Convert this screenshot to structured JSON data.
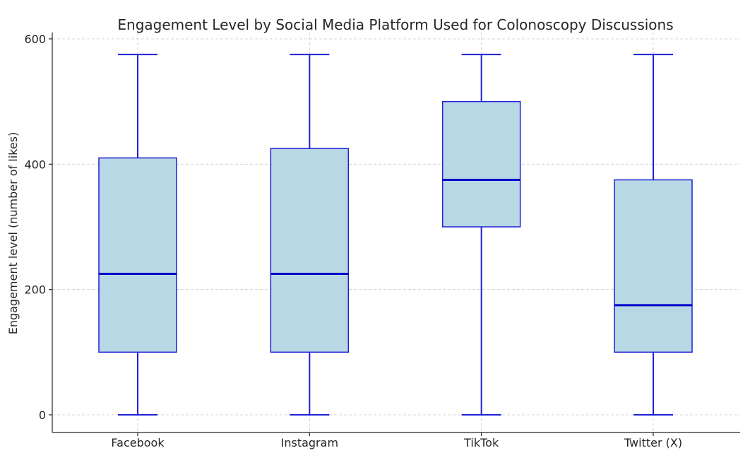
{
  "chart_data": {
    "type": "box",
    "title": "Engagement Level by Social Media Platform Used for Colonoscopy Discussions",
    "xlabel": "",
    "ylabel": "Engagement level (number of likes)",
    "ylim": [
      -30,
      600
    ],
    "yticks": [
      0,
      200,
      400,
      600
    ],
    "grid": true,
    "categories": [
      "Facebook",
      "Instagram",
      "TikTok",
      "Twitter (X)"
    ],
    "boxes": [
      {
        "category": "Facebook",
        "whisker_low": 0,
        "q1": 100,
        "median": 225,
        "q3": 410,
        "whisker_high": 575
      },
      {
        "category": "Instagram",
        "whisker_low": 0,
        "q1": 100,
        "median": 225,
        "q3": 425,
        "whisker_high": 575
      },
      {
        "category": "TikTok",
        "whisker_low": 0,
        "q1": 300,
        "median": 375,
        "q3": 500,
        "whisker_high": 575
      },
      {
        "category": "Twitter (X)",
        "whisker_low": 0,
        "q1": 100,
        "median": 175,
        "q3": 375,
        "whisker_high": 575
      }
    ],
    "colors": {
      "box_fill": "#b7d8e4",
      "box_edge": "#1f1fd6",
      "median": "#0000cc"
    }
  }
}
